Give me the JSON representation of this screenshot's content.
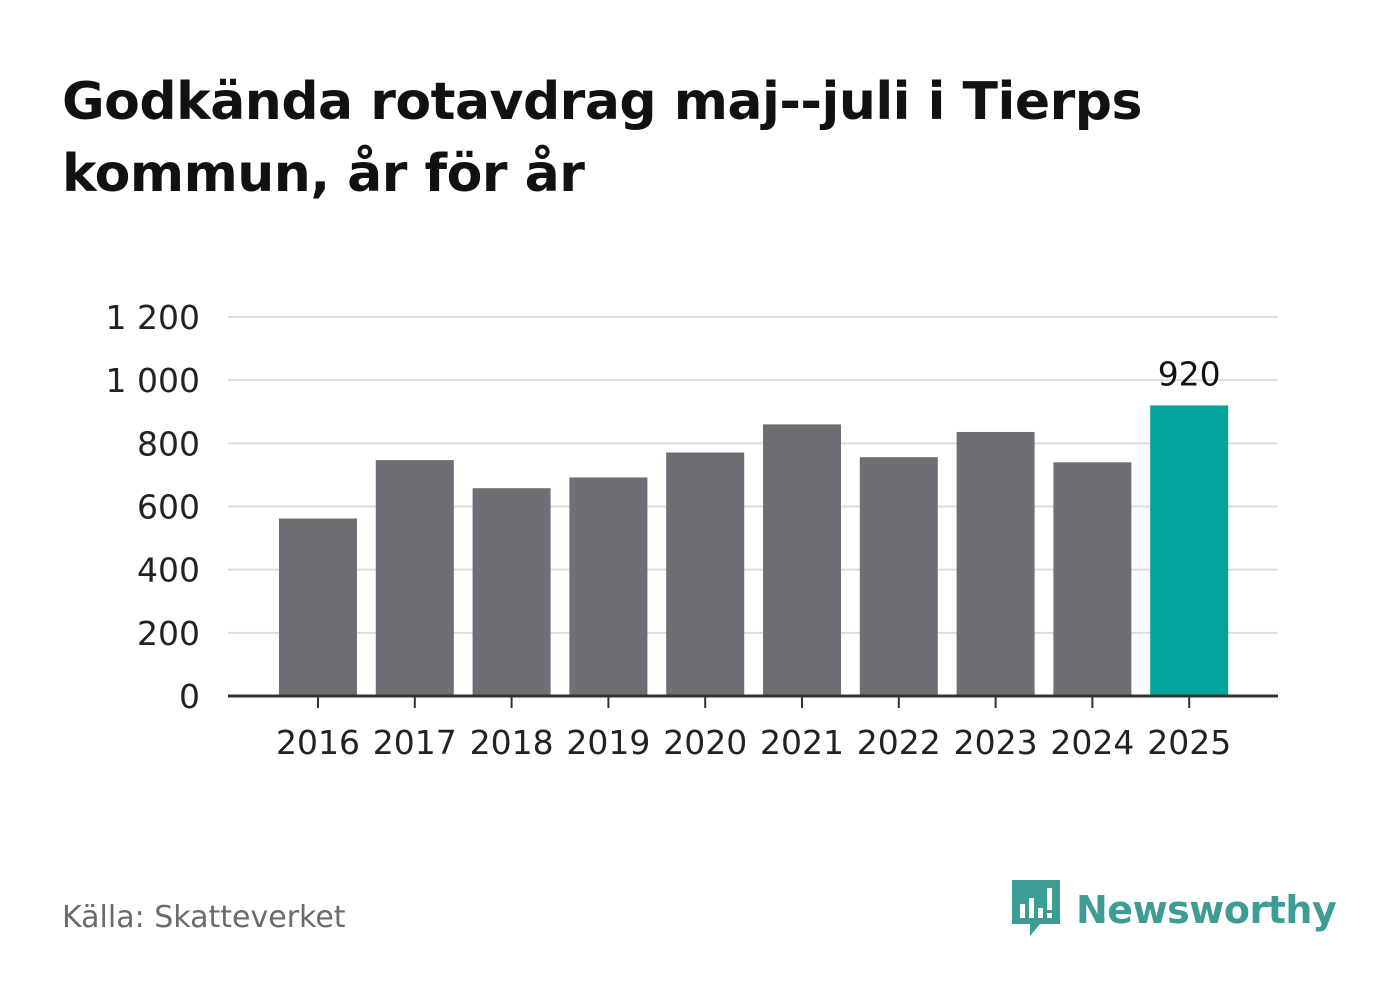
{
  "title": "Godkända rotavdrag maj--juli i Tierps kommun, år för år",
  "source": "Källa: Skatteverket",
  "brand": {
    "name": "Newsworthy",
    "icon": "newsworthy-logo-icon",
    "color": "#3d9c93"
  },
  "colors": {
    "bar": "#6f6e74",
    "highlight": "#00a49a",
    "grid": "#dddddd",
    "axis": "#333333"
  },
  "chart_data": {
    "type": "bar",
    "categories": [
      "2016",
      "2017",
      "2018",
      "2019",
      "2020",
      "2021",
      "2022",
      "2023",
      "2024",
      "2025"
    ],
    "values": [
      562,
      747,
      658,
      692,
      771,
      860,
      756,
      836,
      740,
      920
    ],
    "highlight_index": 9,
    "data_labels": [
      {
        "index": 9,
        "text": "920"
      }
    ],
    "ylim": [
      0,
      1200
    ],
    "yticks": [
      0,
      200,
      400,
      600,
      800,
      1000,
      1200
    ],
    "ytick_labels": [
      "0",
      "200",
      "400",
      "600",
      "800",
      "1 000",
      "1 200"
    ],
    "grid": true,
    "xlabel": "",
    "ylabel": ""
  }
}
